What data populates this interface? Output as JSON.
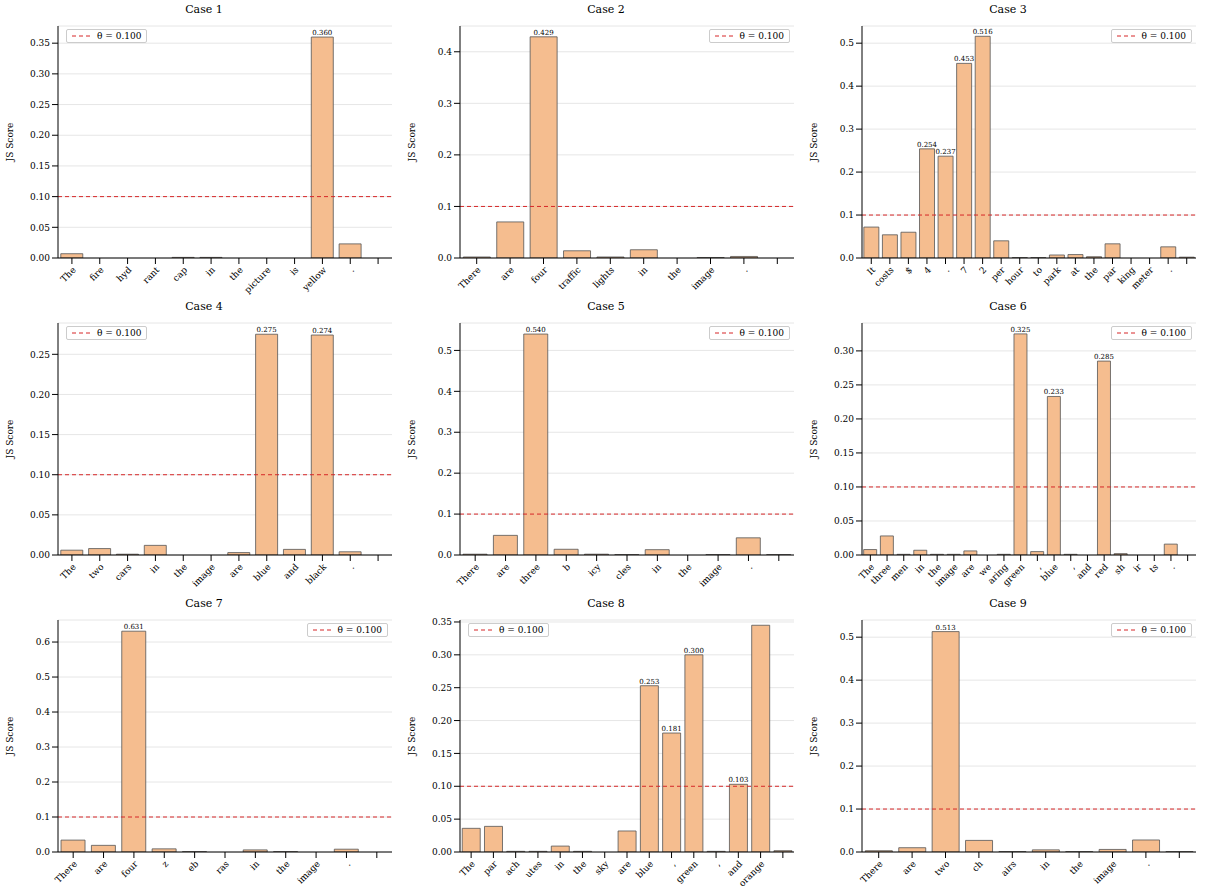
{
  "chart_data": [
    {
      "type": "bar",
      "title": "Case 1",
      "y_label": "JS Score",
      "grid": true,
      "legend": "upper left",
      "color": "#f5bd8f",
      "reference_line": {
        "value": 0.1,
        "label": "θ = 0.100",
        "color": "#d62728"
      },
      "categories": [
        "The",
        "fire",
        "hyd",
        "rant",
        "cap",
        "in",
        "the",
        "picture",
        "is",
        "yellow",
        ".",
        null
      ],
      "values": [
        0.007,
        0,
        0,
        0,
        0.001,
        0.001,
        0,
        0,
        0,
        0.36,
        0.023,
        0
      ],
      "value_labels": [
        null,
        null,
        null,
        null,
        null,
        null,
        null,
        null,
        null,
        "0.360",
        null,
        null
      ],
      "ylim": [
        0,
        0.378
      ],
      "yticks": [
        {
          "value": 0,
          "label": "0.00"
        },
        {
          "value": 0.05,
          "label": "0.05"
        },
        {
          "value": 0.1,
          "label": "0.10"
        },
        {
          "value": 0.15,
          "label": "0.15"
        },
        {
          "value": 0.2,
          "label": "0.20"
        },
        {
          "value": 0.25,
          "label": "0.25"
        },
        {
          "value": 0.3,
          "label": "0.30"
        },
        {
          "value": 0.35,
          "label": "0.35"
        }
      ]
    },
    {
      "type": "bar",
      "title": "Case 2",
      "y_label": "JS Score",
      "grid": true,
      "legend": "upper right",
      "color": "#f5bd8f",
      "reference_line": {
        "value": 0.1,
        "label": "θ = 0.100",
        "color": "#d62728"
      },
      "categories": [
        "There",
        "are",
        "four",
        "traffic",
        "lights",
        "in",
        "the",
        "image",
        ".",
        null
      ],
      "values": [
        0.002,
        0.07,
        0.429,
        0.014,
        0.002,
        0.016,
        0,
        0.001,
        0.003,
        0
      ],
      "value_labels": [
        null,
        null,
        "0.429",
        null,
        null,
        null,
        null,
        null,
        null,
        null
      ],
      "ylim": [
        0,
        0.45
      ],
      "yticks": [
        {
          "value": 0,
          "label": "0.0"
        },
        {
          "value": 0.1,
          "label": "0.1"
        },
        {
          "value": 0.2,
          "label": "0.2"
        },
        {
          "value": 0.3,
          "label": "0.3"
        },
        {
          "value": 0.4,
          "label": "0.4"
        }
      ]
    },
    {
      "type": "bar",
      "title": "Case 3",
      "y_label": "JS Score",
      "grid": true,
      "legend": "upper right",
      "color": "#f5bd8f",
      "reference_line": {
        "value": 0.1,
        "label": "θ = 0.100",
        "color": "#d62728"
      },
      "categories": [
        "It",
        "costs",
        "$",
        "4",
        ".",
        "7",
        "2",
        "per",
        "hour",
        "to",
        "park",
        "at",
        "the",
        "par",
        "king",
        "meter",
        ".",
        null
      ],
      "values": [
        0.072,
        0.054,
        0.06,
        0.254,
        0.237,
        0.453,
        0.516,
        0.04,
        0.001,
        0.001,
        0.007,
        0.008,
        0.003,
        0.033,
        0,
        0,
        0.026,
        0.002
      ],
      "value_labels": [
        null,
        null,
        null,
        "0.254",
        "0.237",
        "0.453",
        "0.516",
        null,
        null,
        null,
        null,
        null,
        null,
        null,
        null,
        null,
        null,
        null
      ],
      "ylim": [
        0,
        0.54
      ],
      "yticks": [
        {
          "value": 0,
          "label": "0.0"
        },
        {
          "value": 0.1,
          "label": "0.1"
        },
        {
          "value": 0.2,
          "label": "0.2"
        },
        {
          "value": 0.3,
          "label": "0.3"
        },
        {
          "value": 0.4,
          "label": "0.4"
        },
        {
          "value": 0.5,
          "label": "0.5"
        }
      ]
    },
    {
      "type": "bar",
      "title": "Case 4",
      "y_label": "JS Score",
      "grid": true,
      "legend": "upper left",
      "color": "#f5bd8f",
      "reference_line": {
        "value": 0.1,
        "label": "θ = 0.100",
        "color": "#d62728"
      },
      "categories": [
        "The",
        "two",
        "cars",
        "in",
        "the",
        "image",
        "are",
        "blue",
        "and",
        "black",
        ".",
        null
      ],
      "values": [
        0.006,
        0.008,
        0.001,
        0.012,
        0,
        0,
        0.003,
        0.275,
        0.007,
        0.274,
        0.004,
        0
      ],
      "value_labels": [
        null,
        null,
        null,
        null,
        null,
        null,
        null,
        "0.275",
        null,
        "0.274",
        null,
        null
      ],
      "ylim": [
        0,
        0.289
      ],
      "yticks": [
        {
          "value": 0,
          "label": "0.00"
        },
        {
          "value": 0.05,
          "label": "0.05"
        },
        {
          "value": 0.1,
          "label": "0.10"
        },
        {
          "value": 0.15,
          "label": "0.15"
        },
        {
          "value": 0.2,
          "label": "0.20"
        },
        {
          "value": 0.25,
          "label": "0.25"
        }
      ]
    },
    {
      "type": "bar",
      "title": "Case 5",
      "y_label": "JS Score",
      "grid": true,
      "legend": "upper right",
      "color": "#f5bd8f",
      "reference_line": {
        "value": 0.1,
        "label": "θ = 0.100",
        "color": "#d62728"
      },
      "categories": [
        "There",
        "are",
        "three",
        "b",
        "icy",
        "cles",
        "in",
        "the",
        "image",
        ".",
        null
      ],
      "values": [
        0.002,
        0.048,
        0.54,
        0.014,
        0.002,
        0.001,
        0.013,
        0,
        0.001,
        0.042,
        0.001
      ],
      "value_labels": [
        null,
        null,
        "0.540",
        null,
        null,
        null,
        null,
        null,
        null,
        null,
        null
      ],
      "ylim": [
        0,
        0.567
      ],
      "yticks": [
        {
          "value": 0,
          "label": "0.0"
        },
        {
          "value": 0.1,
          "label": "0.1"
        },
        {
          "value": 0.2,
          "label": "0.2"
        },
        {
          "value": 0.3,
          "label": "0.3"
        },
        {
          "value": 0.4,
          "label": "0.4"
        },
        {
          "value": 0.5,
          "label": "0.5"
        }
      ]
    },
    {
      "type": "bar",
      "title": "Case 6",
      "y_label": "JS Score",
      "grid": true,
      "legend": "upper right",
      "color": "#f5bd8f",
      "reference_line": {
        "value": 0.1,
        "label": "θ = 0.100",
        "color": "#d62728"
      },
      "categories": [
        "The",
        "three",
        "men",
        "in",
        "the",
        "image",
        "are",
        "we",
        "aring",
        "green",
        ",",
        "blue",
        ",",
        "and",
        "red",
        "sh",
        "ir",
        "ts",
        ".",
        null
      ],
      "values": [
        0.008,
        0.028,
        0.001,
        0.007,
        0.001,
        0.001,
        0.006,
        0,
        0.001,
        0.325,
        0.005,
        0.233,
        0.001,
        0,
        0.285,
        0.002,
        0,
        0,
        0.016,
        0
      ],
      "value_labels": [
        null,
        null,
        null,
        null,
        null,
        null,
        null,
        null,
        null,
        "0.325",
        null,
        "0.233",
        null,
        null,
        "0.285",
        null,
        null,
        null,
        null,
        null
      ],
      "ylim": [
        0,
        0.341
      ],
      "yticks": [
        {
          "value": 0,
          "label": "0.00"
        },
        {
          "value": 0.05,
          "label": "0.05"
        },
        {
          "value": 0.1,
          "label": "0.10"
        },
        {
          "value": 0.15,
          "label": "0.15"
        },
        {
          "value": 0.2,
          "label": "0.20"
        },
        {
          "value": 0.25,
          "label": "0.25"
        },
        {
          "value": 0.3,
          "label": "0.30"
        }
      ]
    },
    {
      "type": "bar",
      "title": "Case 7",
      "y_label": "JS Score",
      "grid": true,
      "legend": "upper right",
      "color": "#f5bd8f",
      "reference_line": {
        "value": 0.1,
        "label": "θ = 0.100",
        "color": "#d62728"
      },
      "categories": [
        "There",
        "are",
        "four",
        "z",
        "eb",
        "ras",
        "in",
        "the",
        "image",
        ".",
        null
      ],
      "values": [
        0.034,
        0.019,
        0.631,
        0.009,
        0.001,
        0,
        0.006,
        0.001,
        0,
        0.008,
        0
      ],
      "value_labels": [
        null,
        null,
        "0.631",
        null,
        null,
        null,
        null,
        null,
        null,
        null,
        null
      ],
      "ylim": [
        0,
        0.663
      ],
      "yticks": [
        {
          "value": 0,
          "label": "0.0"
        },
        {
          "value": 0.1,
          "label": "0.1"
        },
        {
          "value": 0.2,
          "label": "0.2"
        },
        {
          "value": 0.3,
          "label": "0.3"
        },
        {
          "value": 0.4,
          "label": "0.4"
        },
        {
          "value": 0.5,
          "label": "0.5"
        },
        {
          "value": 0.6,
          "label": "0.6"
        }
      ]
    },
    {
      "type": "bar",
      "title": "Case 8",
      "y_label": "JS Score",
      "grid": true,
      "legend": "upper left",
      "color": "#f5bd8f",
      "reference_line": {
        "value": 0.1,
        "label": "θ = 0.100",
        "color": "#d62728"
      },
      "categories": [
        "The",
        "par",
        "ach",
        "utes",
        "in",
        "the",
        "sky",
        "are",
        "blue",
        ",",
        "green",
        ",",
        "and",
        "orange",
        null
      ],
      "values": [
        0.036,
        0.039,
        0.001,
        0.001,
        0.009,
        0.001,
        0,
        0.032,
        0.253,
        0.181,
        0.3,
        0.001,
        0.103,
        0.345,
        0.002
      ],
      "value_labels": [
        null,
        null,
        null,
        null,
        null,
        null,
        null,
        null,
        "0.253",
        "0.181",
        "0.300",
        null,
        "0.103",
        null,
        null
      ],
      "ylim": [
        0,
        0.353
      ],
      "yticks": [
        {
          "value": 0,
          "label": "0.00"
        },
        {
          "value": 0.05,
          "label": "0.05"
        },
        {
          "value": 0.1,
          "label": "0.10"
        },
        {
          "value": 0.15,
          "label": "0.15"
        },
        {
          "value": 0.2,
          "label": "0.20"
        },
        {
          "value": 0.25,
          "label": "0.25"
        },
        {
          "value": 0.3,
          "label": "0.30"
        },
        {
          "value": 0.35,
          "label": "0.35"
        }
      ]
    },
    {
      "type": "bar",
      "title": "Case 9",
      "y_label": "JS Score",
      "grid": true,
      "legend": "upper right",
      "color": "#f5bd8f",
      "reference_line": {
        "value": 0.1,
        "label": "θ = 0.100",
        "color": "#d62728"
      },
      "categories": [
        "There",
        "are",
        "two",
        "ch",
        "airs",
        "in",
        "the",
        "image",
        ".",
        null
      ],
      "values": [
        0.003,
        0.01,
        0.513,
        0.027,
        0.001,
        0.005,
        0.001,
        0.006,
        0.028,
        0.001
      ],
      "value_labels": [
        null,
        null,
        "0.513",
        null,
        null,
        null,
        null,
        null,
        null,
        null
      ],
      "ylim": [
        0,
        0.54
      ],
      "yticks": [
        {
          "value": 0,
          "label": "0.0"
        },
        {
          "value": 0.1,
          "label": "0.1"
        },
        {
          "value": 0.2,
          "label": "0.2"
        },
        {
          "value": 0.3,
          "label": "0.3"
        },
        {
          "value": 0.4,
          "label": "0.4"
        },
        {
          "value": 0.5,
          "label": "0.5"
        }
      ]
    }
  ]
}
